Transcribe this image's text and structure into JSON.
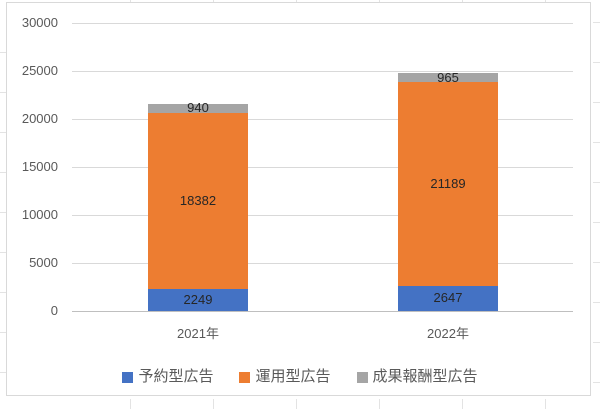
{
  "chart_data": {
    "type": "bar",
    "stacked": true,
    "title": "",
    "xlabel": "",
    "ylabel": "",
    "categories": [
      "2021年",
      "2022年"
    ],
    "series": [
      {
        "name": "予約型広告",
        "color": "#4472C4",
        "values": [
          2249,
          2647
        ]
      },
      {
        "name": "運用型広告",
        "color": "#ED7D31",
        "values": [
          18382,
          21189
        ]
      },
      {
        "name": "成果報酬型広告",
        "color": "#A5A5A5",
        "values": [
          940,
          965
        ]
      }
    ],
    "ylim": [
      0,
      30000
    ],
    "ytick_step": 5000,
    "ytick_labels": [
      "0",
      "5000",
      "10000",
      "15000",
      "20000",
      "25000",
      "30000"
    ],
    "grid": true,
    "legend_position": "bottom",
    "data_labels": true
  },
  "colors": {
    "series_blue": "#4472C4",
    "series_orange": "#ED7D31",
    "series_gray": "#A5A5A5",
    "gridline": "#D9D9D9",
    "axis_line": "#BFBFBF",
    "axis_text": "#595959",
    "data_label_text": "#262626",
    "chart_border": "#D9D9D9",
    "background": "#FFFFFF"
  }
}
